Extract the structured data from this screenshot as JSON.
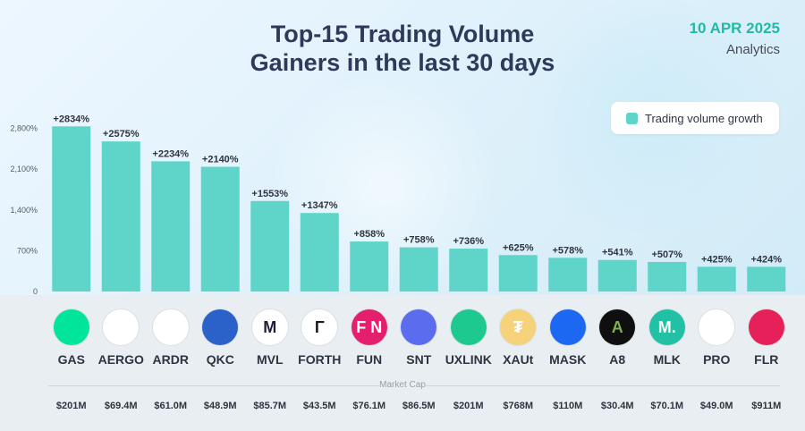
{
  "header": {
    "title_line1": "Top-15 Trading Volume",
    "title_line2": "Gainers in the last 30 days",
    "date": "10 APR 2025",
    "brand": "Analytics"
  },
  "legend": {
    "label": "Trading volume growth",
    "color": "#5fd4c8"
  },
  "market_cap_label": "Market Cap",
  "colors": {
    "bar": "#5fd4c8",
    "title": "#2f3a5a",
    "date": "#25b8a6",
    "band": "#e8eef1"
  },
  "coins": [
    {
      "symbol": "GAS",
      "logo_text": "",
      "logo_bg": "#00e599",
      "logo_fg": "#0a0a0a",
      "icon": "neo-gas-icon",
      "market_cap": "$201M"
    },
    {
      "symbol": "AERGO",
      "logo_text": "",
      "logo_bg": "#ffffff",
      "logo_fg": "#e94a8a",
      "icon": "aergo-icon",
      "market_cap": "$69.4M"
    },
    {
      "symbol": "ARDR",
      "logo_text": "",
      "logo_bg": "#ffffff",
      "logo_fg": "#2d6fc8",
      "icon": "ardor-icon",
      "market_cap": "$61.0M"
    },
    {
      "symbol": "QKC",
      "logo_text": "",
      "logo_bg": "#2a62c9",
      "logo_fg": "#ffffff",
      "icon": "quarkchain-icon",
      "market_cap": "$48.9M"
    },
    {
      "symbol": "MVL",
      "logo_text": "M",
      "logo_bg": "#ffffff",
      "logo_fg": "#1e1e3c",
      "icon": "mvl-icon",
      "market_cap": "$85.7M"
    },
    {
      "symbol": "FORTH",
      "logo_text": "Γ",
      "logo_bg": "#ffffff",
      "logo_fg": "#1a1a1a",
      "icon": "ampleforth-icon",
      "market_cap": "$43.5M"
    },
    {
      "symbol": "FUN",
      "logo_text": "F N",
      "logo_bg": "#e4206e",
      "logo_fg": "#ffffff",
      "icon": "funtoken-icon",
      "market_cap": "$76.1M"
    },
    {
      "symbol": "SNT",
      "logo_text": "",
      "logo_bg": "#5b6dee",
      "logo_fg": "#ffffff",
      "icon": "status-icon",
      "market_cap": "$86.5M"
    },
    {
      "symbol": "UXLINK",
      "logo_text": "",
      "logo_bg": "#1ec98f",
      "logo_fg": "#ffffff",
      "icon": "uxlink-icon",
      "market_cap": "$201M"
    },
    {
      "symbol": "XAUt",
      "logo_text": "₮",
      "logo_bg": "#f6d27a",
      "logo_fg": "#ffffff",
      "icon": "tether-gold-icon",
      "market_cap": "$768M"
    },
    {
      "symbol": "MASK",
      "logo_text": "",
      "logo_bg": "#1c68f3",
      "logo_fg": "#ffffff",
      "icon": "mask-network-icon",
      "market_cap": "$110M"
    },
    {
      "symbol": "A8",
      "logo_text": "A",
      "logo_bg": "#0f0f0f",
      "logo_fg": "#7fb24b",
      "icon": "ancient8-icon",
      "market_cap": "$30.4M"
    },
    {
      "symbol": "MLK",
      "logo_text": "M.",
      "logo_bg": "#22c1a6",
      "logo_fg": "#ffffff",
      "icon": "mil-k-icon",
      "market_cap": "$70.1M"
    },
    {
      "symbol": "PRO",
      "logo_text": "",
      "logo_bg": "#ffffff",
      "logo_fg": "#3aa6e8",
      "icon": "propy-icon",
      "market_cap": "$49.0M"
    },
    {
      "symbol": "FLR",
      "logo_text": "",
      "logo_bg": "#e62058",
      "logo_fg": "#ffffff",
      "icon": "flare-icon",
      "market_cap": "$911M"
    }
  ],
  "chart_data": {
    "type": "bar",
    "title": "Top-15 Trading Volume Gainers in the last 30 days",
    "categories": [
      "GAS",
      "AERGO",
      "ARDR",
      "QKC",
      "MVL",
      "FORTH",
      "FUN",
      "SNT",
      "UXLINK",
      "XAUt",
      "MASK",
      "A8",
      "MLK",
      "PRO",
      "FLR"
    ],
    "series": [
      {
        "name": "Trading volume growth",
        "values": [
          2834,
          2575,
          2234,
          2140,
          1553,
          1347,
          858,
          758,
          736,
          625,
          578,
          541,
          507,
          425,
          424
        ]
      }
    ],
    "data_labels": [
      "+2834%",
      "+2575%",
      "+2234%",
      "+2140%",
      "+1553%",
      "+1347%",
      "+858%",
      "+758%",
      "+736%",
      "+625%",
      "+578%",
      "+541%",
      "+507%",
      "+425%",
      "+424%"
    ],
    "y_ticks": [
      0,
      700,
      1400,
      2100,
      2800
    ],
    "y_tick_labels": [
      "0",
      "700%",
      "1,400%",
      "2,100%",
      "2,800%"
    ],
    "ylim": [
      0,
      2900
    ],
    "legend_position": "top-right",
    "grid": false
  }
}
